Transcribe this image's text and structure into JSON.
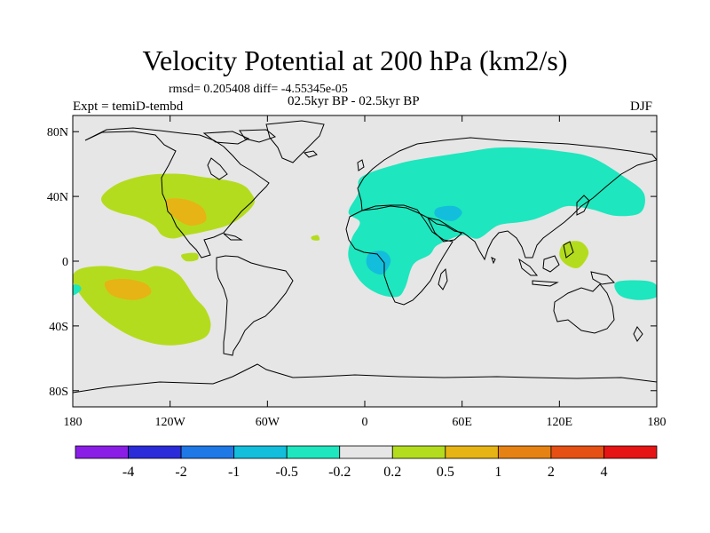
{
  "chart_data": {
    "type": "heatmap",
    "title": "Velocity Potential at 200 hPa (km2/s)",
    "stats_label": "rmsd= 0.205408 diff= -4.55345e-05",
    "subtitle": "02.5kyr BP - 02.5kyr BP",
    "left_label": "Expt = temiD-tembd",
    "right_label": "DJF",
    "x": {
      "range": [
        -180,
        180
      ],
      "ticks": [
        -180,
        -120,
        -60,
        0,
        60,
        120,
        180
      ],
      "tick_labels": [
        "180",
        "120W",
        "60W",
        "0",
        "60E",
        "120E",
        "180"
      ]
    },
    "y": {
      "range": [
        -90,
        90
      ],
      "ticks": [
        80,
        40,
        0,
        -40,
        -80
      ],
      "tick_labels": [
        "80N",
        "40N",
        "0",
        "40S",
        "80S"
      ]
    },
    "colorbar": {
      "colors": [
        "#8a1ee6",
        "#2b2bd9",
        "#1e78e6",
        "#12bedc",
        "#1ee6be",
        "#e6e6e6",
        "#b4dc1e",
        "#e6b414",
        "#e68214",
        "#e65014",
        "#e61414"
      ],
      "labels": [
        "-4",
        "-2",
        "-1",
        "-0.5",
        "-0.2",
        "0.2",
        "0.5",
        "1",
        "2",
        "4"
      ]
    },
    "regions": [
      {
        "name": "north-pacific-north-america-positive",
        "level": 0.35,
        "polygon": [
          [
            -162,
            40
          ],
          [
            -152,
            48
          ],
          [
            -135,
            53
          ],
          [
            -115,
            54
          ],
          [
            -100,
            52
          ],
          [
            -85,
            50
          ],
          [
            -75,
            47
          ],
          [
            -70,
            42
          ],
          [
            -68,
            36
          ],
          [
            -75,
            28
          ],
          [
            -85,
            22
          ],
          [
            -100,
            18
          ],
          [
            -110,
            16
          ],
          [
            -118,
            14
          ],
          [
            -125,
            16
          ],
          [
            -130,
            22
          ],
          [
            -140,
            27
          ],
          [
            -152,
            30
          ],
          [
            -160,
            34
          ]
        ]
      },
      {
        "name": "south-pacific-positive",
        "level": 0.35,
        "polygon": [
          [
            -176,
            -5
          ],
          [
            -160,
            -3
          ],
          [
            -140,
            -6
          ],
          [
            -128,
            -3
          ],
          [
            -115,
            -8
          ],
          [
            -105,
            -22
          ],
          [
            -98,
            -30
          ],
          [
            -95,
            -40
          ],
          [
            -100,
            -48
          ],
          [
            -120,
            -52
          ],
          [
            -140,
            -48
          ],
          [
            -158,
            -38
          ],
          [
            -172,
            -25
          ],
          [
            -180,
            -12
          ]
        ]
      },
      {
        "name": "mexico-positive-core",
        "level": 0.75,
        "polygon": [
          [
            -122,
            38
          ],
          [
            -110,
            38
          ],
          [
            -100,
            33
          ],
          [
            -98,
            25
          ],
          [
            -106,
            22
          ],
          [
            -113,
            24
          ],
          [
            -120,
            30
          ]
        ]
      },
      {
        "name": "south-pacific-positive-core",
        "level": 0.75,
        "polygon": [
          [
            -160,
            -13
          ],
          [
            -148,
            -11
          ],
          [
            -135,
            -14
          ],
          [
            -132,
            -20
          ],
          [
            -142,
            -24
          ],
          [
            -156,
            -21
          ]
        ]
      },
      {
        "name": "central-america-positive-blob",
        "level": 0.35,
        "polygon": [
          [
            -113,
            4
          ],
          [
            -104,
            5
          ],
          [
            -103,
            1
          ],
          [
            -110,
            0
          ]
        ]
      },
      {
        "name": "atlantic-positive-blob",
        "level": 0.35,
        "polygon": [
          [
            -33,
            15
          ],
          [
            -29,
            16
          ],
          [
            -28,
            13
          ],
          [
            -32,
            13
          ]
        ]
      },
      {
        "name": "eurasia-africa-negative",
        "level": -0.35,
        "polygon": [
          [
            -2,
            52
          ],
          [
            20,
            60
          ],
          [
            40,
            64
          ],
          [
            60,
            67
          ],
          [
            80,
            70
          ],
          [
            100,
            70
          ],
          [
            120,
            68
          ],
          [
            140,
            64
          ],
          [
            160,
            52
          ],
          [
            172,
            42
          ],
          [
            170,
            30
          ],
          [
            155,
            28
          ],
          [
            140,
            32
          ],
          [
            125,
            34
          ],
          [
            115,
            30
          ],
          [
            105,
            26
          ],
          [
            95,
            24
          ],
          [
            82,
            22
          ],
          [
            70,
            14
          ],
          [
            60,
            16
          ],
          [
            45,
            10
          ],
          [
            40,
            4
          ],
          [
            30,
            -2
          ],
          [
            25,
            -16
          ],
          [
            20,
            -22
          ],
          [
            8,
            -20
          ],
          [
            -3,
            -12
          ],
          [
            -10,
            2
          ],
          [
            -8,
            14
          ],
          [
            -3,
            24
          ],
          [
            -10,
            30
          ],
          [
            -4,
            42
          ]
        ]
      },
      {
        "name": "middle-east-negative-core",
        "level": -0.75,
        "polygon": [
          [
            45,
            33
          ],
          [
            55,
            34
          ],
          [
            60,
            30
          ],
          [
            55,
            25
          ],
          [
            47,
            26
          ],
          [
            43,
            29
          ]
        ]
      },
      {
        "name": "africa-negative-core",
        "level": -0.75,
        "polygon": [
          [
            3,
            5
          ],
          [
            12,
            6
          ],
          [
            16,
            0
          ],
          [
            11,
            -8
          ],
          [
            4,
            -6
          ],
          [
            1,
            -1
          ]
        ]
      },
      {
        "name": "maritime-continent-positive",
        "level": 0.35,
        "polygon": [
          [
            123,
            11
          ],
          [
            133,
            12
          ],
          [
            138,
            5
          ],
          [
            132,
            -4
          ],
          [
            124,
            -2
          ],
          [
            120,
            4
          ]
        ]
      },
      {
        "name": "australia-pacific-negative",
        "level": -0.35,
        "polygon": [
          [
            155,
            -13
          ],
          [
            172,
            -12
          ],
          [
            180,
            -15
          ],
          [
            180,
            -22
          ],
          [
            168,
            -24
          ],
          [
            157,
            -21
          ]
        ]
      },
      {
        "name": "dateline-west-negative",
        "level": -0.35,
        "polygon": [
          [
            -180,
            -15
          ],
          [
            -176,
            -15
          ],
          [
            -175,
            -18
          ],
          [
            -180,
            -21
          ]
        ]
      }
    ]
  }
}
